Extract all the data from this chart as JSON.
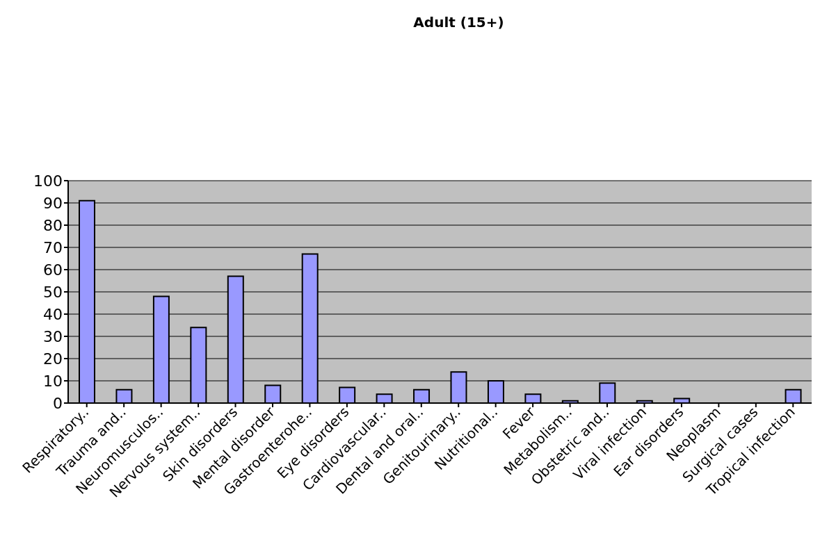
{
  "chart_data": {
    "type": "bar",
    "title": "Adult (15+)",
    "categories": [
      "Respiratory..",
      "Trauma and..",
      "Neuromusculos..",
      "Nervous system..",
      "Skin disorders",
      "Mental disorder",
      "Gastroenterohe..",
      "Eye disorders",
      "Cardiovascular..",
      "Dental and oral..",
      "Genitourinary..",
      "Nutritional..",
      "Fever",
      "Metabolism..",
      "Obstetric and..",
      "Viral infection",
      "Ear disorders",
      "Neoplasm",
      "Surgical cases",
      "Tropical infection"
    ],
    "values": [
      91,
      6,
      48,
      34,
      57,
      8,
      67,
      7,
      4,
      6,
      14,
      10,
      4,
      1,
      9,
      1,
      2,
      0,
      0,
      6
    ],
    "color": "#9999ff",
    "ylim": [
      0,
      100
    ],
    "yticks": [
      0,
      10,
      20,
      30,
      40,
      50,
      60,
      70,
      80,
      90,
      100
    ],
    "grid": "y"
  }
}
